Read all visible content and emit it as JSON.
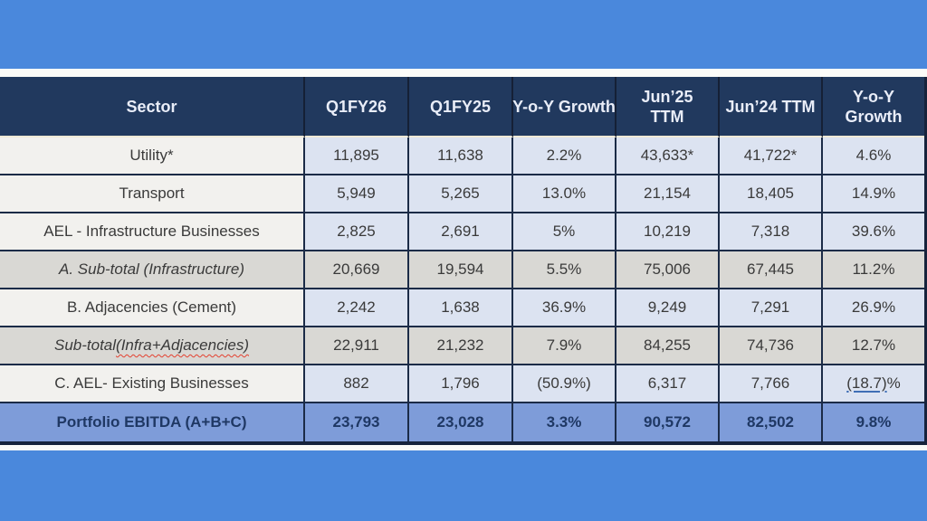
{
  "colors": {
    "page_background": "#4A88DC",
    "header_background": "#21395E",
    "header_text": "#E9EDF8",
    "normal_sector_cell": "#F2F1EE",
    "normal_value_cell": "#DCE3F1",
    "subtotal_row": "#D9D8D4",
    "total_row": "#7E9CD9",
    "total_row_text": "#1F3864",
    "grid_border": "#1B2B47",
    "spellcheck_squiggle": "#E3402F",
    "value_underline": "#3F6EB5",
    "white_strip": "#FBFBF8"
  },
  "chart_data": {
    "type": "table",
    "title": "",
    "columns": [
      {
        "label": "Sector",
        "lines": [
          "Sector"
        ]
      },
      {
        "label": "Q1FY26",
        "lines": [
          "Q1FY26"
        ]
      },
      {
        "label": "Q1FY25",
        "lines": [
          "Q1FY25"
        ]
      },
      {
        "label": "Y-o-Y Growth",
        "lines": [
          "Y-o-Y Growth"
        ]
      },
      {
        "label": "Jun’25 TTM",
        "lines": [
          "Jun’25",
          "TTM"
        ]
      },
      {
        "label": "Jun’24 TTM",
        "lines": [
          "Jun’24 TTM"
        ]
      },
      {
        "label": "Y-o-Y Growth",
        "lines": [
          "Y-o-Y",
          "Growth"
        ]
      }
    ],
    "rows": [
      {
        "style": "normal",
        "cells": [
          "Utility*",
          "11,895",
          "11,638",
          "2.2%",
          "43,633*",
          "41,722*",
          "4.6%"
        ]
      },
      {
        "style": "normal",
        "cells": [
          "Transport",
          "5,949",
          "5,265",
          "13.0%",
          "21,154",
          "18,405",
          "14.9%"
        ]
      },
      {
        "style": "normal",
        "cells": [
          "AEL - Infrastructure Businesses",
          "2,825",
          "2,691",
          "5%",
          "10,219",
          "7,318",
          "39.6%"
        ]
      },
      {
        "style": "subtotal",
        "cells": [
          "A. Sub-total (Infrastructure)",
          "20,669",
          "19,594",
          "5.5%",
          "75,006",
          "67,445",
          "11.2%"
        ]
      },
      {
        "style": "normal",
        "cells": [
          "B. Adjacencies (Cement)",
          "2,242",
          "1,638",
          "36.9%",
          "9,249",
          "7,291",
          "26.9%"
        ]
      },
      {
        "style": "subtotal",
        "cells": [
          {
            "parts": [
              {
                "text": "Sub-total ",
                "deco": "none"
              },
              {
                "text": "(Infra+Adjacencies)",
                "deco": "spellcheck-wavy"
              }
            ]
          },
          "22,911",
          "21,232",
          "7.9%",
          "84,255",
          "74,736",
          "12.7%"
        ]
      },
      {
        "style": "normal",
        "cells": [
          "C. AEL- Existing Businesses",
          "882",
          "1,796",
          "(50.9%)",
          "6,317",
          "7,766",
          {
            "parts": [
              {
                "text": "(18.7)",
                "deco": "underline"
              },
              {
                "text": "%",
                "deco": "none"
              }
            ]
          }
        ]
      },
      {
        "style": "total",
        "cells": [
          "Portfolio EBITDA (A+B+C)",
          "23,793",
          "23,028",
          "3.3%",
          "90,572",
          "82,502",
          "9.8%"
        ]
      }
    ]
  }
}
